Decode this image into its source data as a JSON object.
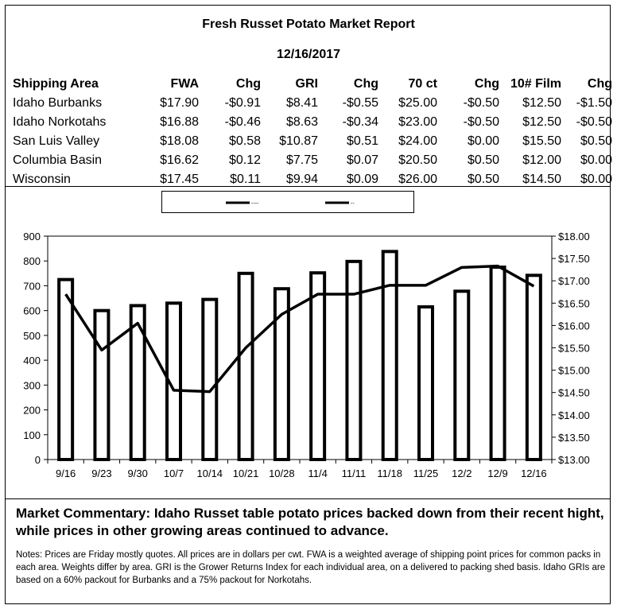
{
  "report": {
    "title": "Fresh Russet Potato Market Report",
    "date": "12/16/2017"
  },
  "table": {
    "headers": [
      "Shipping Area",
      "FWA",
      "Chg",
      "GRI",
      "Chg",
      "70 ct",
      "Chg",
      "10# Film",
      "Chg"
    ],
    "rows": [
      [
        "Idaho Burbanks",
        "$17.90",
        "-$0.91",
        "$8.41",
        "-$0.55",
        "$25.00",
        "-$0.50",
        "$12.50",
        "-$1.50"
      ],
      [
        "Idaho Norkotahs",
        "$16.88",
        "-$0.46",
        "$8.63",
        "-$0.34",
        "$23.00",
        "-$0.50",
        "$12.50",
        "-$0.50"
      ],
      [
        "San Luis Valley",
        "$18.08",
        "$0.58",
        "$10.87",
        "$0.51",
        "$24.00",
        "$0.00",
        "$15.50",
        "$0.50"
      ],
      [
        "Columbia Basin",
        "$16.62",
        "$0.12",
        "$7.75",
        "$0.07",
        "$20.50",
        "$0.50",
        "$12.00",
        "$0.00"
      ],
      [
        "Wisconsin",
        "$17.45",
        "$0.11",
        "$9.94",
        "$0.09",
        "$26.00",
        "$0.50",
        "$14.50",
        "$0.00"
      ]
    ]
  },
  "chart_data": {
    "type": "bar",
    "categories": [
      "9/16",
      "9/23",
      "9/30",
      "10/7",
      "10/14",
      "10/21",
      "10/28",
      "11/4",
      "11/11",
      "11/18",
      "11/25",
      "12/2",
      "12/9",
      "12/16"
    ],
    "series": [
      {
        "kind": "bar",
        "axis": "left",
        "values": [
          725,
          600,
          620,
          630,
          645,
          750,
          688,
          752,
          798,
          838,
          615,
          678,
          775,
          742
        ]
      },
      {
        "kind": "line",
        "axis": "right",
        "values": [
          16.7,
          15.45,
          16.05,
          14.55,
          14.52,
          15.5,
          16.25,
          16.7,
          16.7,
          16.9,
          16.9,
          17.3,
          17.33,
          16.88
        ]
      }
    ],
    "y_left": {
      "min": 0,
      "max": 900,
      "step": 100
    },
    "y_right": {
      "min": 13.0,
      "max": 18.0,
      "step": 0.5
    },
    "y_left_ticks": [
      "0",
      "100",
      "200",
      "300",
      "400",
      "500",
      "600",
      "700",
      "800",
      "900"
    ],
    "y_right_ticks": [
      "$13.00",
      "$13.50",
      "$14.00",
      "$14.50",
      "$15.00",
      "$15.50",
      "$16.00",
      "$16.50",
      "$17.00",
      "$17.50",
      "$18.00"
    ],
    "legend_labels": [
      "----",
      "--"
    ],
    "legend_placement": "top-center",
    "grid": false,
    "title": "",
    "xlabel": "",
    "ylabel": ""
  },
  "commentary": "Market Commentary: Idaho Russet table potato prices backed down from their recent hight, while prices in other growing areas continued to advance.",
  "notes": "Notes: Prices are Friday mostly quotes. All prices are in dollars per cwt. FWA is a weighted average of shipping point prices for  common packs in each area. Weights differ by area. GRI is the Grower Returns Index for each individual area, on a delivered to packing shed basis. Idaho GRIs are based on a 60% packout for Burbanks and a 75% packout for Norkotahs."
}
